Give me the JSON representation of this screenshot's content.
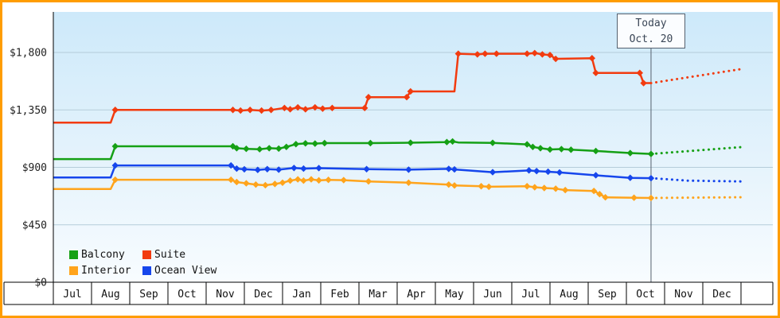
{
  "chart_data": {
    "type": "line",
    "description": "Cruise cabin price history by category with forecast after today marker",
    "y_axis": {
      "min": 0,
      "max": 1800,
      "ticks": [
        {
          "value": 1800,
          "label": "$1,800"
        },
        {
          "value": 1350,
          "label": "$1,350"
        },
        {
          "value": 900,
          "label": "$900"
        },
        {
          "value": 450,
          "label": "$450"
        },
        {
          "value": 0,
          "label": "$0"
        }
      ]
    },
    "x_axis": {
      "months": [
        "Jul",
        "Aug",
        "Sep",
        "Oct",
        "Nov",
        "Dec",
        "Jan",
        "Feb",
        "Mar",
        "Apr",
        "May",
        "Jun",
        "Jul",
        "Aug",
        "Sep",
        "Oct",
        "Nov",
        "Dec"
      ]
    },
    "today": {
      "label_line1": "Today",
      "label_line2": "Oct. 20",
      "month_index": 15,
      "day": 20,
      "position_months": 15.645
    },
    "series": [
      {
        "name": "Interior",
        "color": "#ffa41c",
        "points": [
          [
            0,
            730,
            0
          ],
          [
            1.5,
            730,
            0
          ],
          [
            1.62,
            803,
            1
          ],
          [
            4.65,
            803,
            1
          ],
          [
            4.8,
            785,
            1
          ],
          [
            5.05,
            775,
            1
          ],
          [
            5.3,
            765,
            1
          ],
          [
            5.55,
            760,
            1
          ],
          [
            5.8,
            770,
            1
          ],
          [
            6.0,
            780,
            1
          ],
          [
            6.2,
            796,
            1
          ],
          [
            6.4,
            806,
            1
          ],
          [
            6.55,
            796,
            1
          ],
          [
            6.75,
            806,
            1
          ],
          [
            6.95,
            798,
            1
          ],
          [
            7.2,
            802,
            1
          ],
          [
            7.6,
            800,
            1
          ],
          [
            8.25,
            790,
            1
          ],
          [
            9.3,
            780,
            1
          ],
          [
            10.35,
            765,
            1
          ],
          [
            10.5,
            758,
            1
          ],
          [
            11.2,
            752,
            1
          ],
          [
            11.4,
            748,
            1
          ],
          [
            12.4,
            752,
            1
          ],
          [
            12.6,
            744,
            1
          ],
          [
            12.85,
            738,
            1
          ],
          [
            13.15,
            733,
            1
          ],
          [
            13.4,
            722,
            1
          ],
          [
            14.15,
            715,
            1
          ],
          [
            14.3,
            690,
            1
          ],
          [
            14.45,
            665,
            1
          ],
          [
            15.2,
            662,
            1
          ],
          [
            15.645,
            660,
            1
          ]
        ],
        "forecast": [
          [
            15.645,
            660
          ],
          [
            18,
            666
          ]
        ]
      },
      {
        "name": "Ocean View",
        "color": "#1646ec",
        "points": [
          [
            0,
            820,
            0
          ],
          [
            1.5,
            820,
            0
          ],
          [
            1.62,
            915,
            1
          ],
          [
            4.65,
            915,
            1
          ],
          [
            4.8,
            890,
            1
          ],
          [
            5.0,
            885,
            1
          ],
          [
            5.35,
            880,
            1
          ],
          [
            5.6,
            886,
            1
          ],
          [
            5.9,
            882,
            1
          ],
          [
            6.3,
            895,
            1
          ],
          [
            6.55,
            890,
            1
          ],
          [
            6.95,
            894,
            1
          ],
          [
            8.2,
            886,
            1
          ],
          [
            9.3,
            882,
            1
          ],
          [
            10.35,
            888,
            1
          ],
          [
            10.5,
            884,
            1
          ],
          [
            11.5,
            862,
            1
          ],
          [
            12.45,
            876,
            1
          ],
          [
            12.65,
            871,
            1
          ],
          [
            12.95,
            866,
            1
          ],
          [
            13.25,
            860,
            1
          ],
          [
            14.2,
            838,
            1
          ],
          [
            15.1,
            818,
            1
          ],
          [
            15.645,
            815,
            1
          ]
        ],
        "forecast": [
          [
            15.645,
            815
          ],
          [
            16.6,
            796
          ],
          [
            18,
            790
          ]
        ]
      },
      {
        "name": "Balcony",
        "color": "#15a015",
        "points": [
          [
            0,
            965,
            0
          ],
          [
            1.5,
            965,
            0
          ],
          [
            1.62,
            1065,
            1
          ],
          [
            4.7,
            1065,
            1
          ],
          [
            4.8,
            1050,
            1
          ],
          [
            5.05,
            1045,
            1
          ],
          [
            5.4,
            1042,
            1
          ],
          [
            5.65,
            1050,
            1
          ],
          [
            5.9,
            1047,
            1
          ],
          [
            6.1,
            1060,
            1
          ],
          [
            6.35,
            1082,
            1
          ],
          [
            6.6,
            1088,
            1
          ],
          [
            6.85,
            1086,
            1
          ],
          [
            7.1,
            1090,
            1
          ],
          [
            8.3,
            1090,
            1
          ],
          [
            9.35,
            1093,
            1
          ],
          [
            10.3,
            1098,
            1
          ],
          [
            10.45,
            1103,
            1
          ],
          [
            10.6,
            1095,
            0
          ],
          [
            11.5,
            1092,
            1
          ],
          [
            12.4,
            1080,
            1
          ],
          [
            12.55,
            1060,
            1
          ],
          [
            12.75,
            1050,
            1
          ],
          [
            13.0,
            1040,
            1
          ],
          [
            13.3,
            1043,
            1
          ],
          [
            13.55,
            1038,
            1
          ],
          [
            14.2,
            1028,
            1
          ],
          [
            15.1,
            1012,
            1
          ],
          [
            15.645,
            1005,
            1
          ]
        ],
        "forecast": [
          [
            15.645,
            1005
          ],
          [
            18,
            1058
          ]
        ]
      },
      {
        "name": "Suite",
        "color": "#f23b0f",
        "points": [
          [
            0,
            1250,
            0
          ],
          [
            1.5,
            1250,
            0
          ],
          [
            1.62,
            1350,
            1
          ],
          [
            4.7,
            1350,
            1
          ],
          [
            4.9,
            1345,
            1
          ],
          [
            5.15,
            1350,
            1
          ],
          [
            5.45,
            1345,
            1
          ],
          [
            5.7,
            1350,
            1
          ],
          [
            6.05,
            1365,
            1
          ],
          [
            6.2,
            1355,
            1
          ],
          [
            6.4,
            1370,
            1
          ],
          [
            6.6,
            1355,
            1
          ],
          [
            6.85,
            1370,
            1
          ],
          [
            7.05,
            1360,
            1
          ],
          [
            7.3,
            1365,
            1
          ],
          [
            8.15,
            1365,
            1
          ],
          [
            8.25,
            1450,
            1
          ],
          [
            9.25,
            1450,
            1
          ],
          [
            9.35,
            1495,
            1
          ],
          [
            10.5,
            1495,
            0
          ],
          [
            10.6,
            1790,
            1
          ],
          [
            11.1,
            1785,
            1
          ],
          [
            11.3,
            1790,
            1
          ],
          [
            11.6,
            1790,
            1
          ],
          [
            12.4,
            1790,
            1
          ],
          [
            12.6,
            1795,
            1
          ],
          [
            12.8,
            1785,
            1
          ],
          [
            13.0,
            1780,
            1
          ],
          [
            13.15,
            1750,
            1
          ],
          [
            14.1,
            1755,
            1
          ],
          [
            14.2,
            1640,
            1
          ],
          [
            15.35,
            1640,
            1
          ],
          [
            15.45,
            1560,
            1
          ],
          [
            15.645,
            1560,
            0
          ]
        ],
        "forecast": [
          [
            15.645,
            1560
          ],
          [
            18,
            1670
          ]
        ]
      }
    ],
    "legend": {
      "position": "bottom-left",
      "items": [
        {
          "label": "Balcony",
          "color": "#15a015"
        },
        {
          "label": "Suite",
          "color": "#f23b0f"
        },
        {
          "label": "Interior",
          "color": "#ffa41c"
        },
        {
          "label": "Ocean View",
          "color": "#1646ec"
        }
      ]
    },
    "style": {
      "border_color": "#ff9d00",
      "plot_gradient_top": "#cde9fa",
      "plot_gradient_bottom": "#f8fcff",
      "gridline_color": "#b5cdda",
      "axis_color": "#000000",
      "today_line_color": "#55606e"
    }
  }
}
